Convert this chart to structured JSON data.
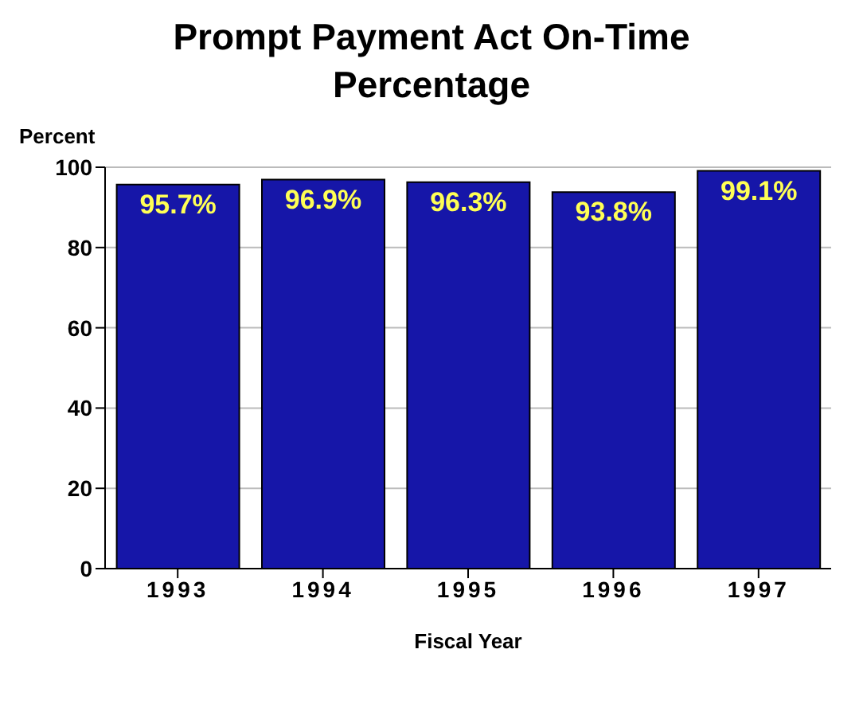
{
  "chart_data": {
    "type": "bar",
    "title": "Prompt Payment Act On-Time Percentage",
    "ylabel": "Percent",
    "xlabel": "Fiscal Year",
    "categories": [
      "1993",
      "1994",
      "1995",
      "1996",
      "1997"
    ],
    "values": [
      95.7,
      96.9,
      96.3,
      93.8,
      99.1
    ],
    "value_labels": [
      "95.7%",
      "96.9%",
      "96.3%",
      "93.8%",
      "99.1%"
    ],
    "color": "#1616a8",
    "ylim": [
      0,
      100
    ],
    "yticks": [
      0,
      20,
      40,
      60,
      80,
      100
    ],
    "grid": "y"
  }
}
